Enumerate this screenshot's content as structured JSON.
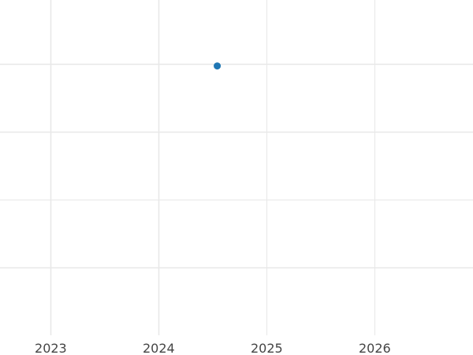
{
  "chart_data": {
    "type": "scatter",
    "title": "",
    "xlabel": "",
    "ylabel": "",
    "x_ticks": [
      "2023",
      "2024",
      "2025",
      "2026"
    ],
    "x_tick_values": [
      2023,
      2024,
      2025,
      2026
    ],
    "xlim": [
      2022.53,
      2026.91
    ],
    "ylim": [
      0,
      5
    ],
    "y_gridlines": [
      1,
      2,
      3,
      4
    ],
    "y_tick_labels_shown": false,
    "grid": true,
    "points": [
      {
        "x": "2024-07",
        "y": 3.97
      }
    ],
    "colors": {
      "point": "#1f77b4",
      "grid": "#e8e8e8",
      "tick_text": "#444444"
    }
  }
}
